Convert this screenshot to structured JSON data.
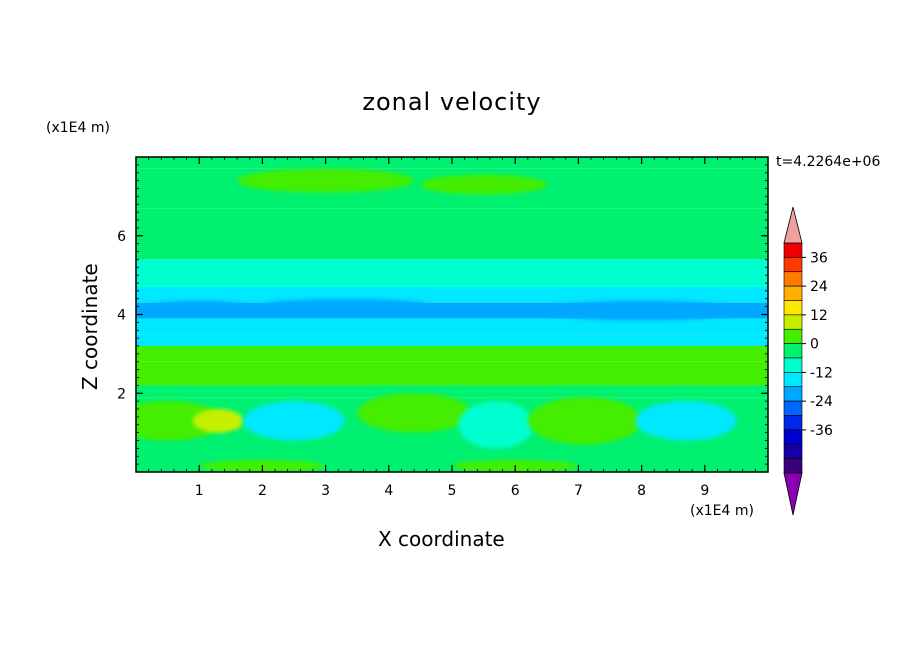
{
  "chart_data": {
    "type": "heatmap",
    "title": "zonal velocity",
    "xlabel": "X coordinate",
    "ylabel": "Z coordinate",
    "x_unit": "(x1E4 m)",
    "y_unit": "(x1E4 m)",
    "annotation": "t=4.2264e+06",
    "xlim": [
      0,
      10
    ],
    "ylim": [
      0,
      8
    ],
    "x_ticks": [
      "1",
      "2",
      "3",
      "4",
      "5",
      "6",
      "7",
      "8",
      "9"
    ],
    "y_ticks": [
      "2",
      "4",
      "6"
    ],
    "colorbar": {
      "labels": [
        "36",
        "24",
        "12",
        "0",
        "-12",
        "-24",
        "-36"
      ],
      "levels": [
        -42,
        -36,
        -30,
        -24,
        -18,
        -12,
        -6,
        0,
        6,
        12,
        18,
        24,
        30,
        36,
        42
      ],
      "colors": [
        "#3d007a",
        "#1400a8",
        "#0000cc",
        "#0028e6",
        "#0066ff",
        "#00a8ff",
        "#00e8ff",
        "#00ffd0",
        "#00f070",
        "#44ee00",
        "#c6f000",
        "#ffe600",
        "#ffb000",
        "#ff7a00",
        "#ff3a00",
        "#ee0000"
      ],
      "over_color": "#f0a0a0",
      "under_color": "#8a00b0"
    },
    "bands": [
      {
        "z": [
          7.7,
          8.0
        ],
        "value": 3
      },
      {
        "z": [
          7.1,
          7.7
        ],
        "value": 5
      },
      {
        "z": [
          6.7,
          7.1
        ],
        "value": 3
      },
      {
        "z": [
          5.4,
          6.7
        ],
        "value": 2
      },
      {
        "z": [
          4.7,
          5.4
        ],
        "value": -3
      },
      {
        "z": [
          4.3,
          4.7
        ],
        "value": -9
      },
      {
        "z": [
          3.9,
          4.3
        ],
        "value": -17
      },
      {
        "z": [
          3.5,
          3.9
        ],
        "value": -10
      },
      {
        "z": [
          3.2,
          3.5
        ],
        "value": -7
      },
      {
        "z": [
          2.8,
          3.2
        ],
        "value": 7
      },
      {
        "z": [
          2.2,
          2.8
        ],
        "value": 8
      },
      {
        "z": [
          1.9,
          2.2
        ],
        "value": 3
      },
      {
        "z": [
          0.0,
          1.9
        ],
        "value": 2
      }
    ],
    "cells": [
      {
        "x": 0.5,
        "z": 1.3,
        "rx": 0.9,
        "rz": 0.5,
        "value": 9
      },
      {
        "x": 1.3,
        "z": 1.3,
        "rx": 0.4,
        "rz": 0.3,
        "value": 14
      },
      {
        "x": 2.5,
        "z": 1.3,
        "rx": 0.8,
        "rz": 0.5,
        "value": -9
      },
      {
        "x": 4.4,
        "z": 1.5,
        "rx": 0.9,
        "rz": 0.5,
        "value": 11
      },
      {
        "x": 5.7,
        "z": 1.2,
        "rx": 0.6,
        "rz": 0.6,
        "value": -4
      },
      {
        "x": 7.1,
        "z": 1.3,
        "rx": 0.9,
        "rz": 0.6,
        "value": 9
      },
      {
        "x": 8.7,
        "z": 1.3,
        "rx": 0.8,
        "rz": 0.5,
        "value": -8
      },
      {
        "x": 2.0,
        "z": 0.15,
        "rx": 1.0,
        "rz": 0.15,
        "value": 9
      },
      {
        "x": 6.0,
        "z": 0.15,
        "rx": 1.0,
        "rz": 0.15,
        "value": 9
      },
      {
        "x": 3.0,
        "z": 7.4,
        "rx": 1.4,
        "rz": 0.3,
        "value": 7
      },
      {
        "x": 5.5,
        "z": 7.3,
        "rx": 1.0,
        "rz": 0.25,
        "value": 7
      },
      {
        "x": 3.3,
        "z": 4.2,
        "rx": 1.4,
        "rz": 0.2,
        "value": -18
      },
      {
        "x": 8.0,
        "z": 4.1,
        "rx": 1.6,
        "rz": 0.25,
        "value": -18
      },
      {
        "x": 1.0,
        "z": 4.2,
        "rx": 0.8,
        "rz": 0.15,
        "value": -18
      }
    ]
  }
}
